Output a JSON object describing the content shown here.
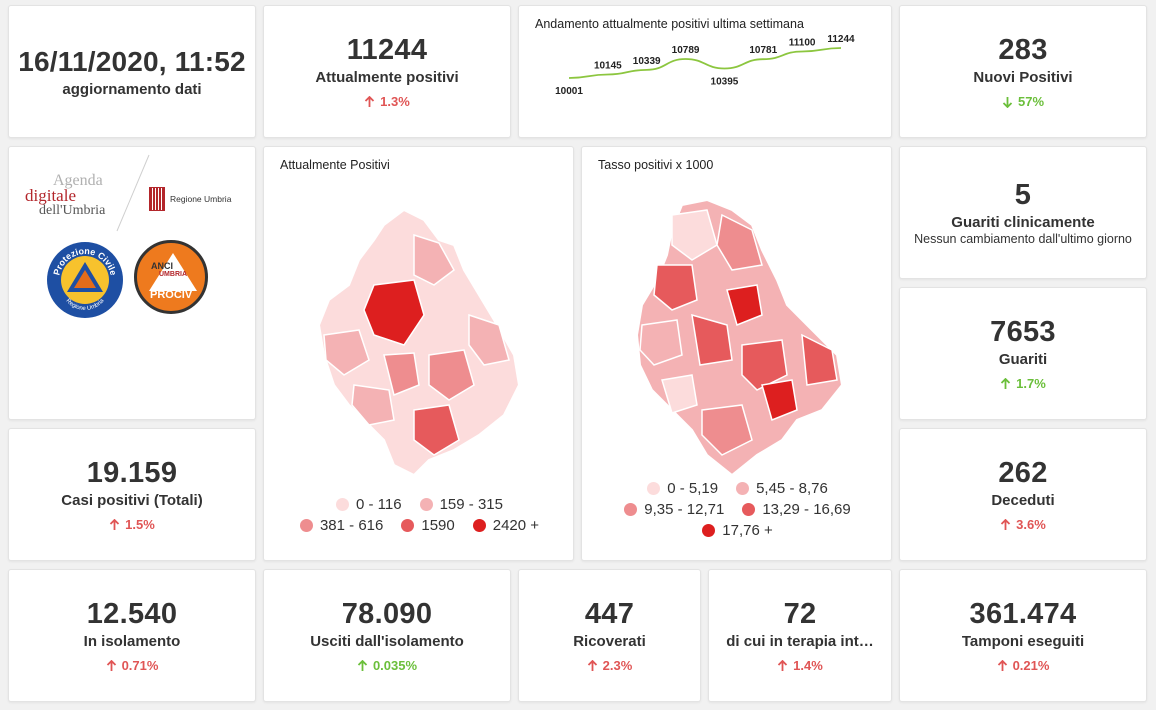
{
  "update": {
    "datetime": "16/11/2020, 11:52",
    "label": "aggiornamento dati"
  },
  "attualmente_positivi": {
    "value": "11244",
    "label": "Attualmente positivi",
    "change": "1.3%"
  },
  "trend": {
    "title": "Andamento attualmente positivi ultima settimana",
    "chart_data": {
      "type": "line",
      "title": "Andamento attualmente positivi ultima settimana",
      "values": [
        10001,
        10145,
        10339,
        10789,
        10395,
        10781,
        11100,
        11244
      ],
      "labels": [
        "10001",
        "10145",
        "10339",
        "10789",
        "10395",
        "10781",
        "11100",
        "11244"
      ],
      "color": "#8cc63f"
    }
  },
  "nuovi_positivi": {
    "value": "283",
    "label": "Nuovi Positivi",
    "change": "57%"
  },
  "logos": {
    "agenda_line1": "Agenda",
    "agenda_line2": "digitale",
    "agenda_line3": "dell'Umbria",
    "regione": "Regione Umbria",
    "protezione_top": "Protezione Civile",
    "protezione_bottom": "Regione Umbria",
    "anci_1": "ANCI",
    "anci_2": "UMBRIA",
    "anci_3": "PROCIV"
  },
  "map_positivi": {
    "title": "Attualmente Positivi",
    "legend": [
      "0 - 116",
      "159 - 315",
      "381 - 616",
      "1590",
      "2420 +"
    ]
  },
  "map_tasso": {
    "title": "Tasso positivi x 1000",
    "legend": [
      "0 - 5,19",
      "5,45 - 8,76",
      "9,35 - 12,71",
      "13,29 - 16,69",
      "17,76 +"
    ]
  },
  "legend_colors": [
    "#fcdcdc",
    "#f4b2b4",
    "#ee8d8f",
    "#e65a5c",
    "#dd1f1f"
  ],
  "guariti_clinicamente": {
    "value": "5",
    "label": "Guariti clinicamente",
    "sub": "Nessun cambiamento dall'ultimo giorno"
  },
  "guariti": {
    "value": "7653",
    "label": "Guariti",
    "change": "1.7%"
  },
  "casi_totali": {
    "value": "19.159",
    "label": "Casi positivi (Totali)",
    "change": "1.5%"
  },
  "deceduti": {
    "value": "262",
    "label": "Deceduti",
    "change": "3.6%"
  },
  "isolamento": {
    "value": "12.540",
    "label": "In isolamento",
    "change": "0.71%"
  },
  "usciti": {
    "value": "78.090",
    "label": "Usciti dall'isolamento",
    "change": "0.035%"
  },
  "ricoverati": {
    "value": "447",
    "label": "Ricoverati",
    "change": "2.3%"
  },
  "terapia": {
    "value": "72",
    "label": "di cui in terapia int…",
    "change": "1.4%"
  },
  "tamponi": {
    "value": "361.474",
    "label": "Tamponi eseguiti",
    "change": "0.21%"
  }
}
